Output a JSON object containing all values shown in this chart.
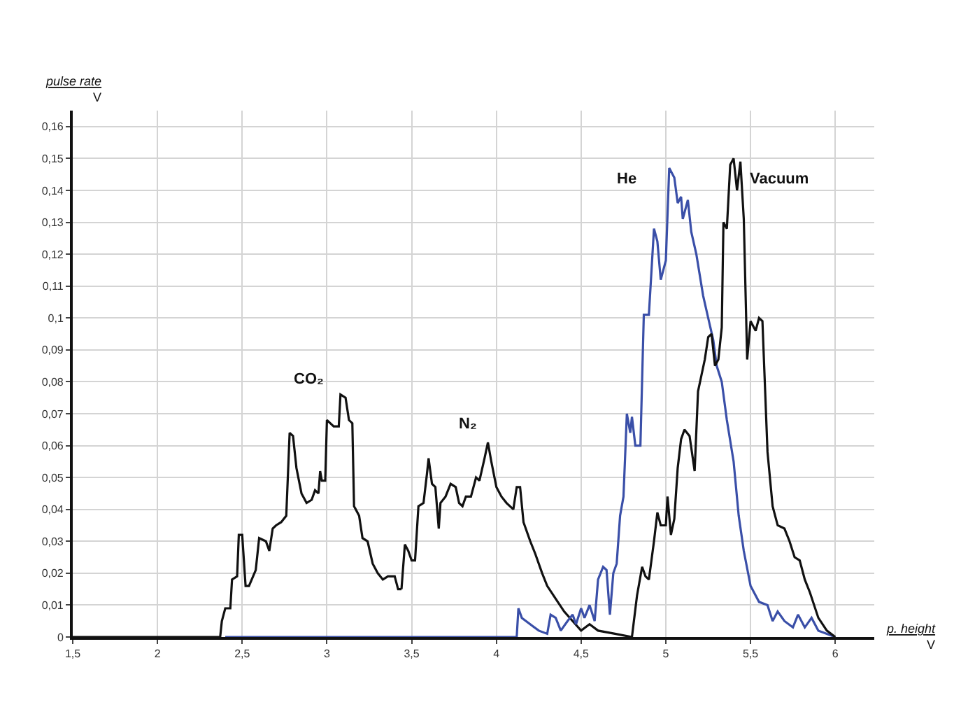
{
  "chart_data": {
    "type": "line",
    "xlabel": "p. height\nV",
    "ylabel": "pulse rate\nV",
    "xlim": [
      1.5,
      6.23
    ],
    "ylim": [
      0,
      0.165
    ],
    "xticks": [
      {
        "value": 1.5,
        "label": "1,5"
      },
      2,
      {
        "value": 2.5,
        "label": "2,5"
      },
      3,
      {
        "value": 3.5,
        "label": "3,5"
      },
      4,
      {
        "value": 4.5,
        "label": "4,5"
      },
      5,
      {
        "value": 5.5,
        "label": "5,5"
      },
      6
    ],
    "yticks": [
      0,
      {
        "value": 0.01,
        "label": "0,01"
      },
      {
        "value": 0.02,
        "label": "0,02"
      },
      {
        "value": 0.03,
        "label": "0,03"
      },
      {
        "value": 0.04,
        "label": "0,04"
      },
      {
        "value": 0.05,
        "label": "0,05"
      },
      {
        "value": 0.06,
        "label": "0,06"
      },
      {
        "value": 0.07,
        "label": "0,07"
      },
      {
        "value": 0.08,
        "label": "0,08"
      },
      {
        "value": 0.09,
        "label": "0,09"
      },
      {
        "value": 0.1,
        "label": "0,1"
      },
      {
        "value": 0.11,
        "label": "0,11"
      },
      {
        "value": 0.12,
        "label": "0,12"
      },
      {
        "value": 0.13,
        "label": "0,13"
      },
      {
        "value": 0.14,
        "label": "0,14"
      },
      {
        "value": 0.15,
        "label": "0,15"
      },
      {
        "value": 0.16,
        "label": "0,16"
      }
    ],
    "grid": true,
    "legend": false,
    "marker": "none",
    "line_style": "solid",
    "series": [
      {
        "name": "CO₂",
        "color": "#111111",
        "x": [
          1.5,
          2.37,
          2.38,
          2.4,
          2.43,
          2.44,
          2.47,
          2.48,
          2.5,
          2.52,
          2.54,
          2.58,
          2.6,
          2.64,
          2.66,
          2.68,
          2.7,
          2.73,
          2.76,
          2.78,
          2.8,
          2.82,
          2.85,
          2.88,
          2.91,
          2.93,
          2.95,
          2.96,
          2.97,
          2.99,
          3.0,
          3.04,
          3.07,
          3.08,
          3.11,
          3.13,
          3.15,
          3.16,
          3.19,
          3.21,
          3.24,
          3.27,
          3.3,
          3.33,
          3.36,
          3.4,
          3.42,
          3.44
        ],
        "values": [
          0,
          0,
          0.005,
          0.009,
          0.009,
          0.018,
          0.019,
          0.032,
          0.032,
          0.016,
          0.016,
          0.021,
          0.031,
          0.03,
          0.027,
          0.034,
          0.035,
          0.036,
          0.038,
          0.064,
          0.063,
          0.053,
          0.045,
          0.042,
          0.043,
          0.046,
          0.045,
          0.052,
          0.049,
          0.049,
          0.068,
          0.066,
          0.066,
          0.076,
          0.075,
          0.068,
          0.067,
          0.041,
          0.038,
          0.031,
          0.03,
          0.023,
          0.02,
          0.018,
          0.019,
          0.019,
          0.015,
          0.015
        ]
      },
      {
        "name": "N₂",
        "color": "#111111",
        "x": [
          3.44,
          3.46,
          3.48,
          3.5,
          3.52,
          3.54,
          3.57,
          3.59,
          3.6,
          3.62,
          3.64,
          3.66,
          3.67,
          3.7,
          3.73,
          3.76,
          3.78,
          3.8,
          3.82,
          3.85,
          3.88,
          3.9,
          3.93,
          3.95,
          3.97,
          4.0,
          4.03,
          4.06,
          4.1,
          4.12,
          4.14,
          4.16,
          4.2,
          4.23,
          4.27,
          4.3,
          4.35,
          4.4,
          4.45,
          4.5,
          4.55,
          4.6,
          4.7,
          4.8
        ],
        "values": [
          0.015,
          0.029,
          0.027,
          0.024,
          0.024,
          0.041,
          0.042,
          0.051,
          0.056,
          0.048,
          0.047,
          0.034,
          0.042,
          0.044,
          0.048,
          0.047,
          0.042,
          0.041,
          0.044,
          0.044,
          0.05,
          0.049,
          0.056,
          0.061,
          0.055,
          0.047,
          0.044,
          0.042,
          0.04,
          0.047,
          0.047,
          0.036,
          0.03,
          0.026,
          0.02,
          0.016,
          0.012,
          0.008,
          0.005,
          0.002,
          0.004,
          0.002,
          0.001,
          0
        ]
      },
      {
        "name": "He",
        "color": "#3a4fa8",
        "x": [
          2.4,
          4.12,
          4.13,
          4.15,
          4.25,
          4.3,
          4.32,
          4.35,
          4.38,
          4.42,
          4.45,
          4.47,
          4.5,
          4.52,
          4.55,
          4.58,
          4.6,
          4.63,
          4.65,
          4.67,
          4.69,
          4.71,
          4.73,
          4.75,
          4.77,
          4.79,
          4.8,
          4.82,
          4.85,
          4.87,
          4.9,
          4.93,
          4.95,
          4.97,
          5.0,
          5.02,
          5.05,
          5.07,
          5.09,
          5.1,
          5.13,
          5.15,
          5.18,
          5.22,
          5.25,
          5.28,
          5.3,
          5.33,
          5.36,
          5.4,
          5.43,
          5.46,
          5.5,
          5.55,
          5.6,
          5.63,
          5.66,
          5.7,
          5.75,
          5.78,
          5.82,
          5.86,
          5.9,
          6.0
        ],
        "values": [
          0,
          0,
          0.009,
          0.006,
          0.002,
          0.001,
          0.007,
          0.006,
          0.002,
          0.005,
          0.007,
          0.004,
          0.009,
          0.006,
          0.01,
          0.005,
          0.018,
          0.022,
          0.021,
          0.007,
          0.02,
          0.023,
          0.038,
          0.044,
          0.07,
          0.064,
          0.069,
          0.06,
          0.06,
          0.101,
          0.101,
          0.128,
          0.124,
          0.112,
          0.118,
          0.147,
          0.144,
          0.136,
          0.138,
          0.131,
          0.137,
          0.127,
          0.12,
          0.107,
          0.1,
          0.093,
          0.085,
          0.08,
          0.068,
          0.055,
          0.038,
          0.027,
          0.016,
          0.011,
          0.01,
          0.005,
          0.008,
          0.005,
          0.003,
          0.007,
          0.003,
          0.006,
          0.002,
          0
        ]
      },
      {
        "name": "Vacuum",
        "color": "#111111",
        "x": [
          4.8,
          4.83,
          4.86,
          4.88,
          4.9,
          4.93,
          4.95,
          4.97,
          5.0,
          5.01,
          5.03,
          5.05,
          5.07,
          5.09,
          5.11,
          5.14,
          5.17,
          5.19,
          5.21,
          5.23,
          5.25,
          5.27,
          5.29,
          5.31,
          5.33,
          5.34,
          5.36,
          5.38,
          5.4,
          5.42,
          5.44,
          5.46,
          5.48,
          5.5,
          5.53,
          5.55,
          5.57,
          5.6,
          5.63,
          5.66,
          5.7,
          5.73,
          5.76,
          5.79,
          5.82,
          5.85,
          5.9,
          5.95,
          6.0
        ],
        "values": [
          0,
          0.013,
          0.022,
          0.019,
          0.018,
          0.03,
          0.039,
          0.035,
          0.035,
          0.044,
          0.032,
          0.037,
          0.053,
          0.062,
          0.065,
          0.063,
          0.052,
          0.077,
          0.082,
          0.087,
          0.094,
          0.095,
          0.085,
          0.087,
          0.097,
          0.13,
          0.128,
          0.148,
          0.15,
          0.14,
          0.149,
          0.131,
          0.087,
          0.099,
          0.096,
          0.1,
          0.099,
          0.058,
          0.041,
          0.035,
          0.034,
          0.03,
          0.025,
          0.024,
          0.018,
          0.014,
          0.006,
          0.002,
          0
        ]
      }
    ]
  }
}
